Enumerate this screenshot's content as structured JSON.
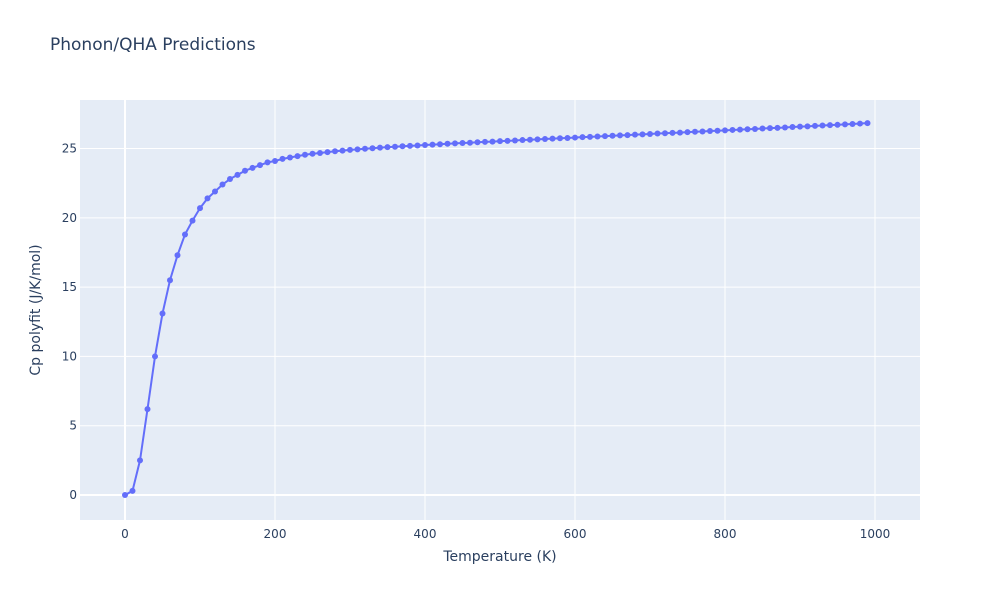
{
  "chart_data": {
    "type": "line",
    "title": "Phonon/QHA Predictions",
    "xlabel": "Temperature (K)",
    "ylabel": "Cp polyfit (J/K/mol)",
    "xlim": [
      -60,
      1060
    ],
    "ylim": [
      -1.8,
      28.5
    ],
    "x_ticks": [
      0,
      200,
      400,
      600,
      800,
      1000
    ],
    "x_tick_labels": [
      "0",
      "200",
      "400",
      "600",
      "800",
      "1000"
    ],
    "y_ticks": [
      0,
      5,
      10,
      15,
      20,
      25
    ],
    "y_tick_labels": [
      "0",
      "5",
      "10",
      "15",
      "20",
      "25"
    ],
    "grid": true,
    "legend": "none",
    "colors": {
      "plot_bg": "#e5ecf6",
      "grid": "#ffffff",
      "series": "#636efa",
      "text": "#2a3f5f"
    },
    "series": [
      {
        "x": [
          0,
          10,
          20,
          30,
          40,
          50,
          60,
          70,
          80,
          90,
          100,
          110,
          120,
          130,
          140,
          150,
          160,
          170,
          180,
          190,
          200,
          210,
          220,
          230,
          240,
          250,
          260,
          270,
          280,
          290,
          300,
          310,
          320,
          330,
          340,
          350,
          360,
          370,
          380,
          390,
          400,
          410,
          420,
          430,
          440,
          450,
          460,
          470,
          480,
          490,
          500,
          510,
          520,
          530,
          540,
          550,
          560,
          570,
          580,
          590,
          600,
          610,
          620,
          630,
          640,
          650,
          660,
          670,
          680,
          690,
          700,
          710,
          720,
          730,
          740,
          750,
          760,
          770,
          780,
          790,
          800,
          810,
          820,
          830,
          840,
          850,
          860,
          870,
          880,
          890,
          900,
          910,
          920,
          930,
          940,
          950,
          960,
          970,
          980,
          990
        ],
        "y": [
          0.0,
          0.3,
          2.5,
          6.2,
          10.0,
          13.1,
          15.5,
          17.3,
          18.8,
          19.8,
          20.7,
          21.4,
          21.9,
          22.4,
          22.8,
          23.1,
          23.4,
          23.6,
          23.8,
          24.0,
          24.1,
          24.25,
          24.35,
          24.45,
          24.55,
          24.62,
          24.68,
          24.74,
          24.8,
          24.85,
          24.9,
          24.94,
          24.98,
          25.02,
          25.06,
          25.1,
          25.13,
          25.16,
          25.19,
          25.22,
          25.25,
          25.28,
          25.31,
          25.34,
          25.37,
          25.4,
          25.42,
          25.45,
          25.48,
          25.5,
          25.53,
          25.55,
          25.58,
          25.61,
          25.63,
          25.66,
          25.69,
          25.71,
          25.74,
          25.76,
          25.79,
          25.82,
          25.84,
          25.87,
          25.89,
          25.92,
          25.95,
          25.97,
          26.0,
          26.02,
          26.05,
          26.08,
          26.1,
          26.13,
          26.15,
          26.18,
          26.21,
          26.23,
          26.26,
          26.28,
          26.31,
          26.34,
          26.36,
          26.39,
          26.41,
          26.44,
          26.47,
          26.49,
          26.52,
          26.55,
          26.58,
          26.6,
          26.63,
          26.66,
          26.69,
          26.71,
          26.74,
          26.77,
          26.8,
          26.83
        ]
      }
    ]
  }
}
